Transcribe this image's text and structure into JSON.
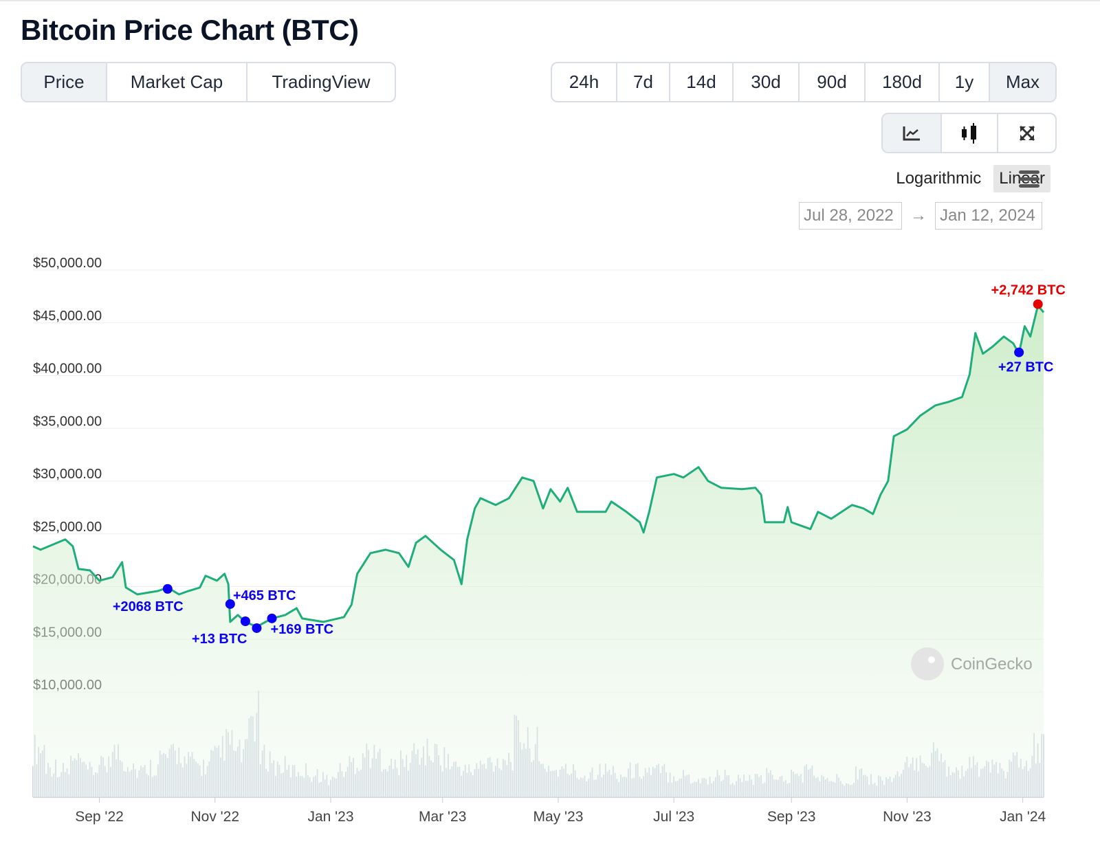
{
  "title": "Bitcoin Price Chart (BTC)",
  "view_tabs": [
    {
      "label": "Price",
      "active": true
    },
    {
      "label": "Market Cap",
      "active": false
    },
    {
      "label": "TradingView",
      "active": false
    }
  ],
  "range_tabs": [
    {
      "label": "24h"
    },
    {
      "label": "7d"
    },
    {
      "label": "14d"
    },
    {
      "label": "30d"
    },
    {
      "label": "90d"
    },
    {
      "label": "180d"
    },
    {
      "label": "1y"
    },
    {
      "label": "Max",
      "active": true
    }
  ],
  "chart_type_buttons": [
    {
      "icon": "line-chart-icon",
      "active": true
    },
    {
      "icon": "candlestick-icon"
    },
    {
      "icon": "fullscreen-icon"
    }
  ],
  "scale": {
    "log_label": "Logarithmic",
    "linear_label": "Linear",
    "selected": "Linear"
  },
  "date_range": {
    "from": "Jul 28, 2022",
    "arrow": "→",
    "to": "Jan 12, 2024"
  },
  "watermark": "CoinGecko",
  "colors": {
    "line": "#1fae7a",
    "marker": "#0b00f5",
    "marker_latest": "#e60000"
  },
  "chart_data": {
    "type": "line",
    "title": "Bitcoin Price Chart (BTC)",
    "x_unit": "days since Jul 28, 2022",
    "ylim": [
      10000,
      50000
    ],
    "y_ticks": [
      {
        "v": 50000,
        "label": "$50,000.00"
      },
      {
        "v": 45000,
        "label": "$45,000.00"
      },
      {
        "v": 40000,
        "label": "$40,000.00"
      },
      {
        "v": 35000,
        "label": "$35,000.00"
      },
      {
        "v": 30000,
        "label": "$30,000.00"
      },
      {
        "v": 25000,
        "label": "$25,000.00"
      },
      {
        "v": 20000,
        "label": "$20,000.00"
      },
      {
        "v": 15000,
        "label": "$15,000.00"
      },
      {
        "v": 10000,
        "label": "$10,000.00"
      }
    ],
    "x_ticks": [
      {
        "d": 35,
        "label": "Sep '22"
      },
      {
        "d": 96,
        "label": "Nov '22"
      },
      {
        "d": 157,
        "label": "Jan '23"
      },
      {
        "d": 216,
        "label": "Mar '23"
      },
      {
        "d": 277,
        "label": "May '23"
      },
      {
        "d": 338,
        "label": "Jul '23"
      },
      {
        "d": 400,
        "label": "Sep '23"
      },
      {
        "d": 461,
        "label": "Nov '23"
      },
      {
        "d": 522,
        "label": "Jan '24"
      }
    ],
    "xlim": [
      0,
      533
    ],
    "series": [
      {
        "name": "Price (USD)",
        "points": [
          [
            0,
            23820
          ],
          [
            4,
            23490
          ],
          [
            17,
            24470
          ],
          [
            21,
            23820
          ],
          [
            24,
            21670
          ],
          [
            30,
            21540
          ],
          [
            35,
            20560
          ],
          [
            42,
            20890
          ],
          [
            47,
            22320
          ],
          [
            49,
            19910
          ],
          [
            55,
            19260
          ],
          [
            66,
            19580
          ],
          [
            71,
            19910
          ],
          [
            77,
            19260
          ],
          [
            82,
            19580
          ],
          [
            88,
            19910
          ],
          [
            91,
            21020
          ],
          [
            97,
            20560
          ],
          [
            101,
            21210
          ],
          [
            103,
            20230
          ],
          [
            104,
            16650
          ],
          [
            108,
            17300
          ],
          [
            112,
            16650
          ],
          [
            118,
            16190
          ],
          [
            126,
            16980
          ],
          [
            133,
            17300
          ],
          [
            139,
            17950
          ],
          [
            142,
            16980
          ],
          [
            153,
            16650
          ],
          [
            164,
            17110
          ],
          [
            168,
            18280
          ],
          [
            171,
            21210
          ],
          [
            178,
            23170
          ],
          [
            186,
            23490
          ],
          [
            193,
            23170
          ],
          [
            198,
            21860
          ],
          [
            202,
            24150
          ],
          [
            207,
            24800
          ],
          [
            215,
            23490
          ],
          [
            222,
            22520
          ],
          [
            226,
            20230
          ],
          [
            229,
            24470
          ],
          [
            233,
            27410
          ],
          [
            236,
            28380
          ],
          [
            244,
            27730
          ],
          [
            251,
            28380
          ],
          [
            258,
            30340
          ],
          [
            264,
            30010
          ],
          [
            269,
            27410
          ],
          [
            273,
            29230
          ],
          [
            278,
            28060
          ],
          [
            282,
            29360
          ],
          [
            287,
            27080
          ],
          [
            294,
            27080
          ],
          [
            302,
            27080
          ],
          [
            305,
            28060
          ],
          [
            313,
            27080
          ],
          [
            320,
            26100
          ],
          [
            322,
            25120
          ],
          [
            325,
            27080
          ],
          [
            329,
            30340
          ],
          [
            338,
            30670
          ],
          [
            343,
            30340
          ],
          [
            351,
            31320
          ],
          [
            356,
            30010
          ],
          [
            363,
            29360
          ],
          [
            374,
            29230
          ],
          [
            381,
            29360
          ],
          [
            384,
            28710
          ],
          [
            386,
            26100
          ],
          [
            396,
            26100
          ],
          [
            398,
            27540
          ],
          [
            400,
            26100
          ],
          [
            410,
            25450
          ],
          [
            414,
            27080
          ],
          [
            421,
            26430
          ],
          [
            432,
            27730
          ],
          [
            438,
            27410
          ],
          [
            443,
            26880
          ],
          [
            447,
            28710
          ],
          [
            451,
            30010
          ],
          [
            454,
            34250
          ],
          [
            461,
            34900
          ],
          [
            468,
            36210
          ],
          [
            476,
            37180
          ],
          [
            483,
            37510
          ],
          [
            490,
            37970
          ],
          [
            494,
            40120
          ],
          [
            497,
            44030
          ],
          [
            501,
            42070
          ],
          [
            506,
            42730
          ],
          [
            512,
            43700
          ],
          [
            517,
            43050
          ],
          [
            520,
            42070
          ],
          [
            523,
            44680
          ],
          [
            526,
            43700
          ],
          [
            530,
            46640
          ],
          [
            533,
            45990
          ]
        ]
      }
    ],
    "annotations": [
      {
        "d": 71,
        "v": 19780,
        "label": "+2068 BTC",
        "color": "blue",
        "label_pos": "below-left"
      },
      {
        "d": 104,
        "v": 18340,
        "label": "+465 BTC",
        "color": "blue",
        "label_pos": "above-right"
      },
      {
        "d": 112,
        "v": 16710,
        "label": "+13 BTC",
        "color": "blue",
        "label_pos": "below-left"
      },
      {
        "d": 118,
        "v": 16060,
        "label": "",
        "color": "blue"
      },
      {
        "d": 126,
        "v": 16980,
        "label": "+169 BTC",
        "color": "blue",
        "label_pos": "below-right"
      },
      {
        "d": 520,
        "v": 42200,
        "label": "+27 BTC",
        "color": "blue",
        "label_pos": "below"
      },
      {
        "d": 530,
        "v": 46770,
        "label": "+2,742 BTC",
        "color": "red",
        "label_pos": "above"
      }
    ],
    "volume_relative": [
      0.55,
      0.35,
      0.3,
      0.4,
      0.3,
      0.35,
      0.5,
      0.4,
      0.3,
      0.35,
      0.45,
      0.5,
      0.4,
      0.35,
      0.45,
      0.6,
      0.5,
      0.9,
      0.45,
      0.35,
      0.3,
      0.3,
      0.25,
      0.2,
      0.3,
      0.4,
      0.5,
      0.45,
      0.35,
      0.4,
      0.5,
      0.5,
      0.45,
      0.35,
      0.3,
      0.35,
      0.4,
      0.45,
      0.7,
      0.6,
      0.35,
      0.3,
      0.3,
      0.25,
      0.3,
      0.3,
      0.25,
      0.3,
      0.3,
      0.3,
      0.25,
      0.25,
      0.2,
      0.2,
      0.25,
      0.2,
      0.2,
      0.2,
      0.25,
      0.2,
      0.25,
      0.3,
      0.2,
      0.2,
      0.2,
      0.3,
      0.2,
      0.2,
      0.25,
      0.35,
      0.45,
      0.5,
      0.35,
      0.3,
      0.35,
      0.35,
      0.3,
      0.4,
      0.35,
      0.55
    ]
  }
}
